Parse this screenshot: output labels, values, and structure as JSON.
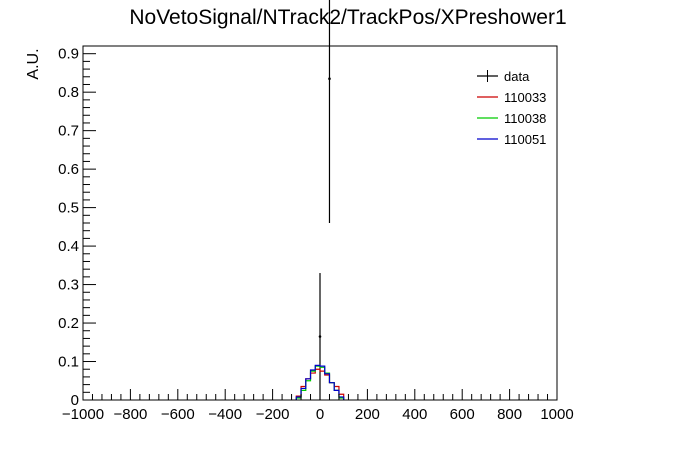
{
  "chart_data": {
    "type": "histogram",
    "title": "NoVetoSignal/NTrack2/TrackPos/XPreshower1",
    "xlabel": "",
    "ylabel": "A.U.",
    "xlim": [
      -1000,
      1000
    ],
    "ylim": [
      0,
      0.92
    ],
    "x_ticks": [
      -1000,
      -800,
      -600,
      -400,
      -200,
      0,
      200,
      400,
      600,
      800,
      1000
    ],
    "y_ticks": [
      0,
      0.1,
      0.2,
      0.3,
      0.4,
      0.5,
      0.6,
      0.7,
      0.8,
      0.9
    ],
    "y_tick_labels": [
      "0",
      "0.1",
      "0.2",
      "0.3",
      "0.4",
      "0.5",
      "0.6",
      "0.7",
      "0.8",
      "0.9"
    ],
    "grid": false,
    "legend_position": "top-right",
    "legend": [
      {
        "label": "data",
        "color": "#000000"
      },
      {
        "label": "110033",
        "color": "#cc0000"
      },
      {
        "label": "110038",
        "color": "#00cc00"
      },
      {
        "label": "110051",
        "color": "#0000cc"
      }
    ],
    "series": [
      {
        "name": "data",
        "style": "points",
        "color": "#000000",
        "points": [
          {
            "x": 0,
            "y": 0.165,
            "err": 0.165
          },
          {
            "x": 40,
            "y": 0.835,
            "err": 0.375
          }
        ]
      },
      {
        "name": "110033",
        "style": "step",
        "color": "#cc0000",
        "bin_edges": [
          -100,
          -80,
          -60,
          -40,
          -20,
          0,
          20,
          40,
          60,
          80,
          100
        ],
        "values": [
          0.01,
          0.035,
          0.055,
          0.07,
          0.08,
          0.075,
          0.065,
          0.045,
          0.035,
          0.015
        ]
      },
      {
        "name": "110038",
        "style": "step",
        "color": "#00cc00",
        "bin_edges": [
          -100,
          -80,
          -60,
          -40,
          -20,
          0,
          20,
          40,
          60,
          80,
          100
        ],
        "values": [
          0.005,
          0.025,
          0.05,
          0.075,
          0.088,
          0.085,
          0.07,
          0.045,
          0.025,
          0.005
        ]
      },
      {
        "name": "110051",
        "style": "step",
        "color": "#0000cc",
        "bin_edges": [
          -100,
          -80,
          -60,
          -40,
          -20,
          0,
          20,
          40,
          60,
          80,
          100
        ],
        "values": [
          0.008,
          0.03,
          0.055,
          0.078,
          0.09,
          0.088,
          0.068,
          0.045,
          0.025,
          0.008
        ]
      }
    ]
  }
}
